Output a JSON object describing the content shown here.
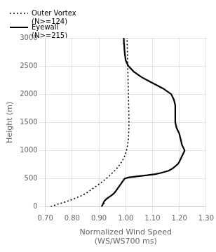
{
  "chart_data": {
    "type": "line",
    "xlabel": [
      "Normalized Wind Speed",
      "(WS/WS700 ms)"
    ],
    "ylabel": "Height (m)",
    "xlim": [
      0.7,
      1.3
    ],
    "ylim": [
      0,
      3000
    ],
    "xticks": [
      {
        "value": 0.7,
        "label": "0.70"
      },
      {
        "value": 0.8,
        "label": "0.80"
      },
      {
        "value": 0.9,
        "label": "0.90"
      },
      {
        "value": 1.0,
        "label": "1.00"
      },
      {
        "value": 1.1,
        "label": "1.10"
      },
      {
        "value": 1.2,
        "label": "1.20"
      },
      {
        "value": 1.3,
        "label": "1.30"
      }
    ],
    "yticks": [
      0,
      500,
      1000,
      1500,
      2000,
      2500,
      3000
    ],
    "grid": true,
    "legend": "upper left",
    "series": [
      {
        "name": "Outer Vortex\n(N>=124)",
        "color": "#000000",
        "line_style": "dotted",
        "x": [
          0.72,
          0.73,
          0.742,
          0.756,
          0.77,
          0.783,
          0.8,
          0.816,
          0.836,
          0.855,
          0.87,
          0.885,
          0.9,
          0.914,
          0.927,
          0.939,
          0.95,
          0.961,
          0.97,
          0.978,
          0.985,
          0.991,
          0.996,
          1.003,
          1.007,
          1.01,
          1.012,
          1.012,
          1.011,
          1.01,
          1.009,
          1.008,
          1.007,
          1.006,
          1.005
        ],
        "values": [
          0,
          20,
          40,
          60,
          80,
          100,
          130,
          160,
          200,
          250,
          300,
          350,
          400,
          450,
          500,
          550,
          600,
          650,
          700,
          750,
          800,
          850,
          900,
          1000,
          1100,
          1200,
          1400,
          1600,
          1800,
          2000,
          2200,
          2400,
          2600,
          2800,
          3000
        ]
      },
      {
        "name": "Eyewall\n(N>=215)",
        "color": "#000000",
        "line_style": "solid",
        "x": [
          0.91,
          0.912,
          0.914,
          0.916,
          0.918,
          0.92,
          0.924,
          0.928,
          0.934,
          0.94,
          0.946,
          0.954,
          0.96,
          0.966,
          0.972,
          0.978,
          0.984,
          0.99,
          0.996,
          1.01,
          1.04,
          1.08,
          1.11,
          1.13,
          1.16,
          1.175,
          1.185,
          1.195,
          1.2,
          1.205,
          1.21,
          1.215,
          1.22,
          1.215,
          1.21,
          1.205,
          1.2,
          1.19,
          1.185,
          1.185,
          1.185,
          1.185,
          1.18,
          1.17,
          1.14,
          1.1,
          1.06,
          1.03,
          1.01,
          1.0,
          0.997,
          0.995,
          0.994,
          0.993
        ],
        "values": [
          0,
          20,
          40,
          60,
          80,
          100,
          120,
          140,
          160,
          180,
          200,
          230,
          260,
          300,
          340,
          380,
          420,
          460,
          500,
          520,
          540,
          560,
          580,
          600,
          640,
          680,
          720,
          760,
          800,
          850,
          900,
          950,
          1000,
          1050,
          1100,
          1200,
          1300,
          1400,
          1500,
          1600,
          1700,
          1800,
          1900,
          2000,
          2100,
          2200,
          2300,
          2400,
          2500,
          2600,
          2700,
          2800,
          2900,
          3000
        ]
      }
    ]
  }
}
